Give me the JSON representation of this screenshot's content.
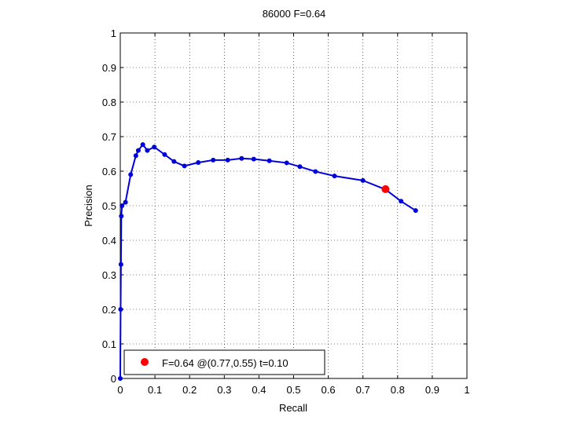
{
  "chart_data": {
    "type": "line",
    "title": "86000 F=0.64",
    "xlabel": "Recall",
    "ylabel": "Precision",
    "xlim": [
      0,
      1
    ],
    "ylim": [
      0,
      1
    ],
    "xticks": [
      "0",
      "0.1",
      "0.2",
      "0.3",
      "0.4",
      "0.5",
      "0.6",
      "0.7",
      "0.8",
      "0.9",
      "1"
    ],
    "yticks": [
      "0",
      "0.1",
      "0.2",
      "0.3",
      "0.4",
      "0.5",
      "0.6",
      "0.7",
      "0.8",
      "0.9",
      "1"
    ],
    "grid": true,
    "legend_position": "bottom-left",
    "series": [
      {
        "color": "#0000dd",
        "marker": "dot",
        "points": [
          [
            0.0,
            0.0
          ],
          [
            0.001,
            0.2
          ],
          [
            0.002,
            0.33
          ],
          [
            0.003,
            0.47
          ],
          [
            0.005,
            0.5
          ],
          [
            0.015,
            0.51
          ],
          [
            0.03,
            0.59
          ],
          [
            0.045,
            0.645
          ],
          [
            0.052,
            0.66
          ],
          [
            0.065,
            0.677
          ],
          [
            0.078,
            0.66
          ],
          [
            0.098,
            0.67
          ],
          [
            0.128,
            0.648
          ],
          [
            0.155,
            0.628
          ],
          [
            0.185,
            0.615
          ],
          [
            0.225,
            0.625
          ],
          [
            0.268,
            0.632
          ],
          [
            0.31,
            0.632
          ],
          [
            0.35,
            0.637
          ],
          [
            0.385,
            0.635
          ],
          [
            0.43,
            0.63
          ],
          [
            0.48,
            0.624
          ],
          [
            0.518,
            0.613
          ],
          [
            0.563,
            0.599
          ],
          [
            0.618,
            0.586
          ],
          [
            0.7,
            0.573
          ],
          [
            0.765,
            0.547
          ],
          [
            0.81,
            0.513
          ],
          [
            0.852,
            0.486
          ]
        ]
      }
    ],
    "highlight": {
      "x": 0.765,
      "y": 0.548,
      "color": "#ff0000",
      "label": "F=0.64 @(0.77,0.55) t=0.10"
    }
  }
}
